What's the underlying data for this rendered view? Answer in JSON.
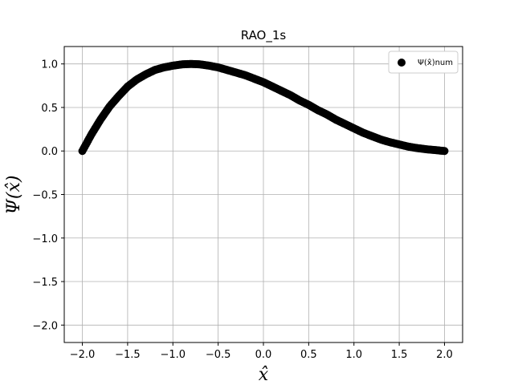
{
  "chart_data": {
    "type": "scatter",
    "title": "RAO_1s",
    "xlabel": "x̂",
    "ylabel": "Ψ(x̂)",
    "xlim": [
      -2.2,
      2.2
    ],
    "ylim": [
      -2.2,
      1.2
    ],
    "xticks": [
      -2.0,
      -1.5,
      -1.0,
      -0.5,
      0.0,
      0.5,
      1.0,
      1.5,
      2.0
    ],
    "xtick_labels": [
      "−2.0",
      "−1.5",
      "−1.0",
      "−0.5",
      "0.0",
      "0.5",
      "1.0",
      "1.5",
      "2.0"
    ],
    "yticks": [
      -2.0,
      -1.5,
      -1.0,
      -0.5,
      0.0,
      0.5,
      1.0
    ],
    "ytick_labels": [
      "−2.0",
      "−1.5",
      "−1.0",
      "−0.5",
      "0.0",
      "0.5",
      "1.0"
    ],
    "grid": true,
    "legend_position": "top-right",
    "marker_color": "#000000",
    "series": [
      {
        "name": "Ψ(x̂)num",
        "x": [
          -2.0,
          -1.9,
          -1.8,
          -1.7,
          -1.6,
          -1.5,
          -1.4,
          -1.3,
          -1.2,
          -1.1,
          -1.0,
          -0.9,
          -0.8,
          -0.7,
          -0.6,
          -0.5,
          -0.4,
          -0.3,
          -0.2,
          -0.1,
          0.0,
          0.1,
          0.2,
          0.3,
          0.4,
          0.5,
          0.6,
          0.7,
          0.8,
          0.9,
          1.0,
          1.1,
          1.2,
          1.3,
          1.4,
          1.5,
          1.6,
          1.7,
          1.8,
          1.9,
          2.0
        ],
        "y": [
          0.0,
          0.19,
          0.36,
          0.51,
          0.63,
          0.74,
          0.82,
          0.88,
          0.93,
          0.96,
          0.98,
          0.995,
          1.0,
          0.995,
          0.98,
          0.96,
          0.93,
          0.9,
          0.87,
          0.83,
          0.79,
          0.74,
          0.69,
          0.64,
          0.58,
          0.53,
          0.47,
          0.42,
          0.36,
          0.31,
          0.26,
          0.21,
          0.17,
          0.13,
          0.1,
          0.075,
          0.05,
          0.033,
          0.02,
          0.01,
          0.0
        ]
      }
    ]
  }
}
